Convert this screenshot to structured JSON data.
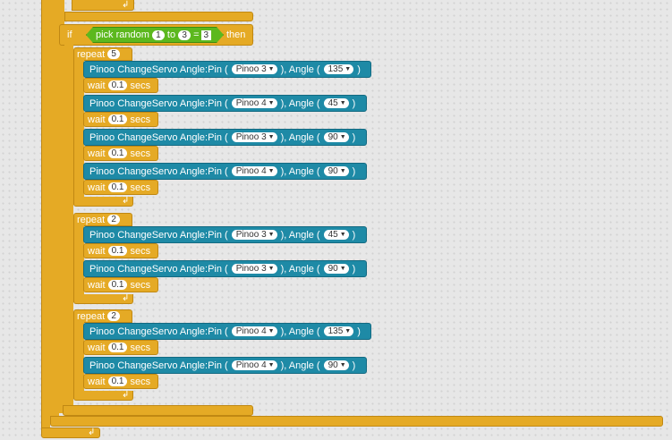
{
  "top_icon": "loop-arrow-icon",
  "if_block": {
    "if_label": "if",
    "then_label": "then",
    "pick_label": "pick random",
    "to_label": "to",
    "from_value": "1",
    "to_value": "3",
    "equals": "=",
    "compare_value": "3"
  },
  "labels": {
    "repeat": "repeat",
    "wait": "wait",
    "secs": "secs",
    "servo_prefix": "Pinoo ChangeServo Angle:Pin (",
    "angle_label": "), Angle (",
    "close_paren": ")"
  },
  "loops": [
    {
      "count": "5",
      "steps": [
        {
          "pin": "Pinoo 3",
          "angle": "135",
          "wait": "0.1"
        },
        {
          "pin": "Pinoo 4",
          "angle": "45",
          "wait": "0.1"
        },
        {
          "pin": "Pinoo 3",
          "angle": "90",
          "wait": "0.1"
        },
        {
          "pin": "Pinoo 4",
          "angle": "90",
          "wait": "0.1"
        }
      ]
    },
    {
      "count": "2",
      "steps": [
        {
          "pin": "Pinoo 3",
          "angle": "45",
          "wait": "0.1"
        },
        {
          "pin": "Pinoo 3",
          "angle": "90",
          "wait": "0.1"
        }
      ]
    },
    {
      "count": "2",
      "steps": [
        {
          "pin": "Pinoo 4",
          "angle": "135",
          "wait": "0.1"
        },
        {
          "pin": "Pinoo 4",
          "angle": "90",
          "wait": "0.1"
        }
      ]
    }
  ]
}
